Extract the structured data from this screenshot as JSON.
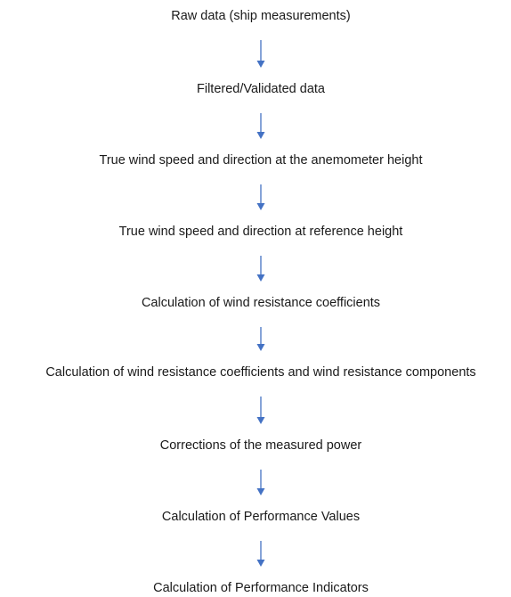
{
  "nodes": [
    {
      "label": "Raw data (ship measurements)"
    },
    {
      "label": "Filtered/Validated data"
    },
    {
      "label": "True wind speed and direction at the anemometer height"
    },
    {
      "label": "True wind speed and direction at reference height"
    },
    {
      "label": "Calculation of wind resistance coefficients"
    },
    {
      "label": "Calculation of wind resistance coefficients and wind resistance components"
    },
    {
      "label": "Corrections of the measured power"
    },
    {
      "label": "Calculation of Performance Values"
    },
    {
      "label": "Calculation of Performance Indicators"
    }
  ]
}
